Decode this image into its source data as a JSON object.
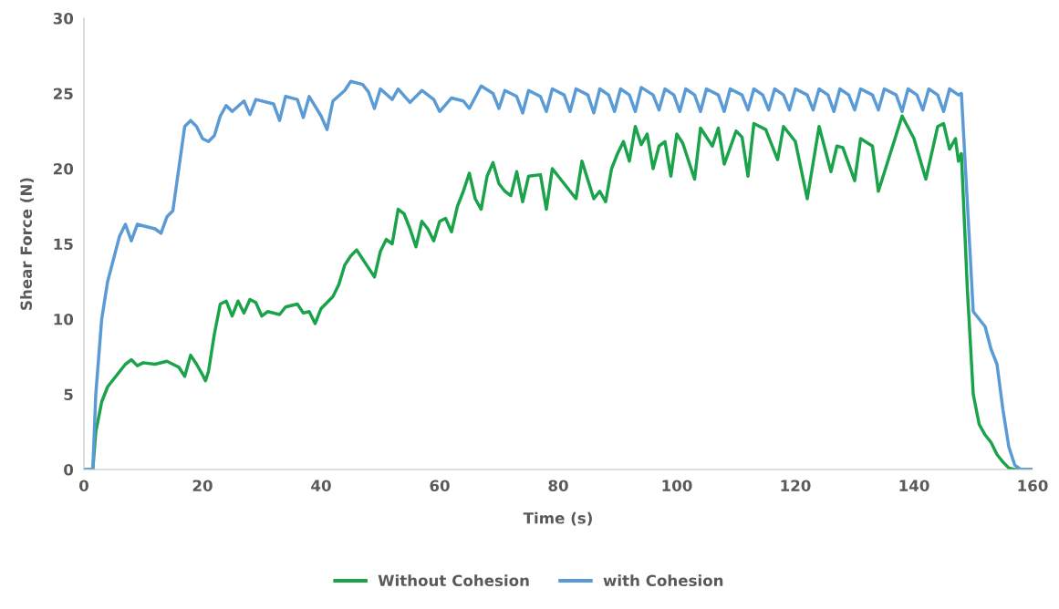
{
  "chart_data": {
    "type": "line",
    "xlabel": "Time (s)",
    "ylabel": "Shear Force (N)",
    "xlim": [
      0,
      160
    ],
    "xticks": [
      0,
      20,
      40,
      60,
      80,
      100,
      120,
      140,
      160
    ],
    "ylim": [
      0,
      30
    ],
    "yticks": [
      0,
      5,
      10,
      15,
      20,
      25,
      30
    ],
    "grid": false,
    "legend": "bottom",
    "marker": "none",
    "line_style": "solid",
    "series": [
      {
        "name": "Without Cohesion",
        "color": "#1aa34a",
        "x": [
          0,
          1.5,
          2,
          3,
          4,
          5,
          6,
          7,
          8,
          9,
          10,
          12,
          14,
          16,
          17,
          18,
          19,
          20,
          20.5,
          21,
          22,
          23,
          24,
          25,
          26,
          27,
          28,
          29,
          30,
          31,
          33,
          34,
          36,
          37,
          38,
          39,
          40,
          42,
          43,
          44,
          45,
          46,
          47,
          48,
          49,
          50,
          51,
          52,
          53,
          54,
          55,
          56,
          57,
          58,
          59,
          60,
          61,
          62,
          63,
          64,
          65,
          66,
          67,
          68,
          69,
          70,
          71,
          72,
          73,
          74,
          75,
          77,
          78,
          79,
          81,
          83,
          84,
          86,
          87,
          88,
          89,
          90,
          91,
          92,
          93,
          94,
          95,
          96,
          97,
          98,
          99,
          100,
          101,
          103,
          104,
          106,
          107,
          108,
          110,
          111,
          112,
          113,
          115,
          117,
          118,
          120,
          122,
          124,
          126,
          127,
          128,
          130,
          131,
          133,
          134,
          136,
          138,
          140,
          142,
          144,
          145,
          146,
          147,
          147.5,
          148,
          149,
          150,
          151,
          152,
          153,
          154,
          155,
          156,
          157,
          160
        ],
        "values": [
          0,
          0,
          2.5,
          4.5,
          5.5,
          6,
          6.5,
          7,
          7.3,
          6.9,
          7.1,
          7,
          7.2,
          6.8,
          6.2,
          7.6,
          7,
          6.3,
          5.9,
          6.5,
          9,
          11,
          11.2,
          10.2,
          11.2,
          10.4,
          11.3,
          11.1,
          10.2,
          10.5,
          10.3,
          10.8,
          11,
          10.4,
          10.5,
          9.7,
          10.7,
          11.5,
          12.3,
          13.6,
          14.2,
          14.6,
          14,
          13.4,
          12.8,
          14.5,
          15.3,
          15,
          17.3,
          17,
          16,
          14.8,
          16.5,
          16,
          15.2,
          16.5,
          16.7,
          15.8,
          17.5,
          18.5,
          19.7,
          18,
          17.3,
          19.5,
          20.4,
          19,
          18.5,
          18.2,
          19.8,
          17.8,
          19.5,
          19.6,
          17.3,
          20,
          19,
          18,
          20.5,
          18,
          18.5,
          17.8,
          20,
          21,
          21.8,
          20.5,
          22.8,
          21.6,
          22.3,
          20,
          21.5,
          21.8,
          19.5,
          22.3,
          21.7,
          19.3,
          22.7,
          21.5,
          22.7,
          20.3,
          22.5,
          22.1,
          19.5,
          23,
          22.6,
          20.6,
          22.8,
          21.8,
          18,
          22.8,
          19.8,
          21.5,
          21.4,
          19.2,
          22,
          21.5,
          18.5,
          21,
          23.5,
          22,
          19.3,
          22.8,
          23,
          21.3,
          22,
          20.5,
          21,
          12,
          5,
          3,
          2.3,
          1.8,
          1,
          0.5,
          0.1,
          0,
          0
        ]
      },
      {
        "name": "with Cohesion",
        "color": "#5b9bd5",
        "x": [
          0,
          1.5,
          2,
          3,
          4,
          5,
          6,
          7,
          8,
          9,
          10,
          12,
          13,
          14,
          15,
          16,
          17,
          18,
          19,
          20,
          21,
          22,
          23,
          24,
          25,
          27,
          28,
          29,
          32,
          33,
          34,
          36,
          37,
          38,
          40,
          41,
          42,
          44,
          45,
          47,
          48,
          49,
          50,
          52,
          53,
          55,
          57,
          59,
          60,
          62,
          64,
          65,
          67,
          69,
          70,
          71,
          73,
          74,
          75,
          77,
          78,
          79,
          81,
          82,
          83,
          85,
          86,
          87,
          88.5,
          89.5,
          90.5,
          92,
          93,
          94,
          96,
          97,
          98,
          99.5,
          100.5,
          101.5,
          103,
          104,
          105,
          107,
          108,
          109,
          111,
          112,
          113,
          114.5,
          115.5,
          116.5,
          118,
          119,
          120,
          122,
          123,
          124,
          125.5,
          126.5,
          127.5,
          129,
          130,
          131,
          133,
          134,
          135,
          137,
          138,
          139,
          140.5,
          141.5,
          142.5,
          144,
          145,
          146,
          147.5,
          148,
          150,
          151,
          152,
          153,
          154,
          155,
          156,
          157,
          158,
          160
        ],
        "values": [
          0,
          0,
          5,
          10,
          12.5,
          14,
          15.5,
          16.3,
          15.2,
          16.3,
          16.2,
          16,
          15.7,
          16.8,
          17.2,
          20,
          22.8,
          23.2,
          22.8,
          22,
          21.8,
          22.2,
          23.5,
          24.2,
          23.8,
          24.5,
          23.6,
          24.6,
          24.3,
          23.2,
          24.8,
          24.6,
          23.4,
          24.8,
          23.5,
          22.6,
          24.5,
          25.2,
          25.8,
          25.6,
          25.1,
          24,
          25.3,
          24.6,
          25.3,
          24.4,
          25.2,
          24.6,
          23.8,
          24.7,
          24.5,
          24,
          25.5,
          25,
          24,
          25.2,
          24.8,
          23.7,
          25.2,
          24.8,
          23.8,
          25.3,
          24.9,
          23.8,
          25.3,
          24.9,
          23.7,
          25.3,
          24.9,
          23.8,
          25.3,
          24.9,
          23.8,
          25.4,
          24.9,
          23.9,
          25.3,
          24.9,
          23.8,
          25.3,
          24.9,
          23.8,
          25.3,
          24.9,
          23.8,
          25.3,
          24.9,
          23.9,
          25.3,
          24.9,
          23.9,
          25.3,
          24.9,
          23.9,
          25.3,
          24.9,
          23.9,
          25.3,
          24.9,
          23.8,
          25.3,
          24.9,
          23.9,
          25.3,
          24.9,
          23.9,
          25.3,
          24.9,
          23.8,
          25.3,
          24.9,
          23.9,
          25.3,
          24.9,
          23.8,
          25.3,
          24.9,
          25,
          10.5,
          10,
          9.5,
          8,
          7,
          4,
          1.5,
          0.3,
          0,
          0
        ]
      }
    ]
  }
}
